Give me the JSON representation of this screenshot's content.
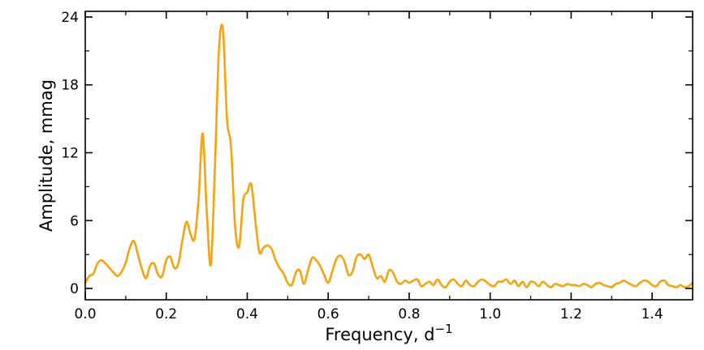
{
  "chart_data": {
    "type": "line",
    "title": "",
    "xlabel": "Frequency, d",
    "xlabel_superscript": "−1",
    "ylabel": "Amplitude, mmag",
    "xlim": [
      0.0,
      1.5
    ],
    "ylim": [
      -1.0,
      24.5
    ],
    "xticks": [
      0.0,
      0.2,
      0.4,
      0.6,
      0.8,
      1.0,
      1.2,
      1.4
    ],
    "xtick_labels": [
      "0.0",
      "0.2",
      "0.4",
      "0.6",
      "0.8",
      "1.0",
      "1.2",
      "1.4"
    ],
    "yticks": [
      0,
      6,
      12,
      18,
      24
    ],
    "ytick_labels": [
      "0",
      "6",
      "12",
      "18",
      "24"
    ],
    "grid": false,
    "line_color": "#F5A40E",
    "series": [
      {
        "x": [
          0.0,
          0.01,
          0.02,
          0.03,
          0.04,
          0.05,
          0.06,
          0.07,
          0.08,
          0.09,
          0.1,
          0.11,
          0.12,
          0.13,
          0.14,
          0.15,
          0.16,
          0.17,
          0.18,
          0.19,
          0.2,
          0.21,
          0.22,
          0.23,
          0.24,
          0.25,
          0.26,
          0.27,
          0.28,
          0.29,
          0.3,
          0.31,
          0.32,
          0.33,
          0.34,
          0.35,
          0.36,
          0.37,
          0.38,
          0.39,
          0.4,
          0.41,
          0.42,
          0.43,
          0.44,
          0.45,
          0.46,
          0.47,
          0.48,
          0.49,
          0.5,
          0.51,
          0.52,
          0.53,
          0.54,
          0.55,
          0.56,
          0.57,
          0.58,
          0.59,
          0.6,
          0.61,
          0.62,
          0.63,
          0.64,
          0.65,
          0.66,
          0.67,
          0.68,
          0.69,
          0.7,
          0.71,
          0.72,
          0.73,
          0.74,
          0.75,
          0.76,
          0.77,
          0.78,
          0.79,
          0.8,
          0.81,
          0.82,
          0.83,
          0.84,
          0.85,
          0.86,
          0.87,
          0.88,
          0.89,
          0.9,
          0.91,
          0.92,
          0.93,
          0.94,
          0.95,
          0.96,
          0.97,
          0.98,
          0.99,
          1.0,
          1.01,
          1.02,
          1.03,
          1.04,
          1.05,
          1.06,
          1.07,
          1.08,
          1.09,
          1.1,
          1.11,
          1.12,
          1.13,
          1.14,
          1.15,
          1.16,
          1.17,
          1.18,
          1.19,
          1.2,
          1.21,
          1.22,
          1.23,
          1.24,
          1.25,
          1.26,
          1.27,
          1.28,
          1.29,
          1.3,
          1.31,
          1.32,
          1.33,
          1.34,
          1.35,
          1.36,
          1.37,
          1.38,
          1.39,
          1.4,
          1.41,
          1.42,
          1.43,
          1.44,
          1.45,
          1.46,
          1.47,
          1.48,
          1.49,
          1.5
        ],
        "y": [
          0.5,
          1.1,
          1.3,
          2.2,
          2.5,
          2.2,
          1.8,
          1.4,
          1.1,
          1.5,
          2.3,
          3.6,
          4.2,
          3.0,
          1.7,
          0.9,
          2.0,
          2.2,
          1.2,
          1.1,
          2.5,
          2.8,
          1.8,
          2.2,
          4.3,
          5.9,
          4.8,
          4.4,
          8.0,
          13.7,
          6.8,
          2.1,
          10.5,
          21.0,
          22.9,
          15.0,
          12.5,
          5.5,
          3.7,
          7.8,
          8.5,
          9.2,
          6.0,
          3.2,
          3.6,
          3.8,
          3.5,
          2.5,
          1.8,
          1.3,
          0.5,
          0.3,
          1.4,
          1.6,
          0.4,
          1.6,
          2.7,
          2.5,
          2.0,
          1.2,
          0.5,
          1.5,
          2.6,
          2.9,
          2.4,
          1.2,
          1.5,
          2.8,
          3.0,
          2.6,
          3.0,
          1.9,
          0.9,
          1.1,
          0.6,
          1.6,
          1.4,
          0.6,
          0.4,
          0.7,
          0.5,
          0.7,
          0.8,
          0.2,
          0.4,
          0.6,
          0.3,
          0.8,
          0.3,
          0.1,
          0.6,
          0.8,
          0.4,
          0.2,
          0.7,
          0.3,
          0.2,
          0.6,
          0.8,
          0.6,
          0.3,
          0.2,
          0.6,
          0.6,
          0.8,
          0.4,
          0.7,
          0.2,
          0.6,
          0.1,
          0.6,
          0.5,
          0.2,
          0.6,
          0.3,
          0.1,
          0.4,
          0.3,
          0.2,
          0.4,
          0.3,
          0.3,
          0.2,
          0.4,
          0.3,
          0.1,
          0.4,
          0.5,
          0.3,
          0.2,
          0.1,
          0.4,
          0.5,
          0.7,
          0.5,
          0.3,
          0.2,
          0.5,
          0.7,
          0.6,
          0.3,
          0.2,
          0.6,
          0.7,
          0.3,
          0.2,
          0.1,
          0.3,
          0.1,
          0.2,
          0.5
        ]
      }
    ]
  }
}
